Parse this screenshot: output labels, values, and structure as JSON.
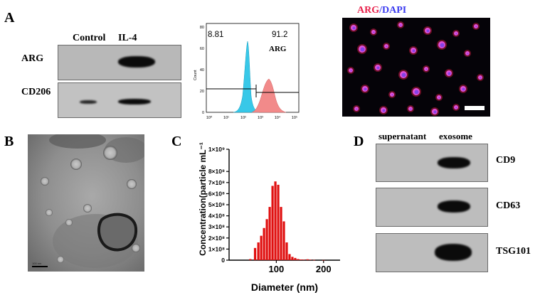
{
  "panels": {
    "a": "A",
    "b": "B",
    "c": "C",
    "d": "D"
  },
  "panel_a": {
    "lanes": [
      "Control",
      "IL-4"
    ],
    "markers": [
      "ARG",
      "CD206"
    ],
    "flow": {
      "gate_left_value": "8.81",
      "gate_right_value": "91.2",
      "marker": "ARG",
      "y_axis_label": "Count",
      "y_ticks": [
        "0",
        "20",
        "40",
        "60",
        "80"
      ],
      "x_ticks": [
        "10⁰",
        "10¹",
        "10²",
        "10³",
        "10⁴",
        "10⁵"
      ],
      "colors": {
        "control": "#38c8e8",
        "il4": "#f28a8a"
      }
    },
    "fluorescence": {
      "title_part1": "ARG",
      "title_sep": "/",
      "title_part2": "DAPI",
      "colors": {
        "arg": "#e8204a",
        "dapi": "#3a3af0"
      }
    }
  },
  "panel_b": {
    "scale_bar_text": "100 nm"
  },
  "panel_c": {
    "y_ticks": [
      "0",
      "1×10⁸",
      "2×10⁸",
      "3×10⁸",
      "4×10⁸",
      "5×10⁸",
      "6×10⁸",
      "7×10⁸",
      "8×10⁸",
      "1×10⁹"
    ],
    "chart_data": {
      "type": "bar",
      "xlabel": "Diameter (nm)",
      "ylabel": "Concentration(particle mL⁻¹",
      "x": [
        45,
        55,
        62,
        68,
        74,
        80,
        86,
        92,
        98,
        104,
        110,
        116,
        122,
        128,
        134,
        140,
        146,
        152,
        158,
        166,
        172,
        180,
        200
      ],
      "values": [
        10000000.0,
        110000000.0,
        160000000.0,
        220000000.0,
        290000000.0,
        370000000.0,
        480000000.0,
        670000000.0,
        710000000.0,
        680000000.0,
        480000000.0,
        350000000.0,
        160000000.0,
        55000000.0,
        30000000.0,
        20000000.0,
        10000000.0,
        6000000.0,
        5000000.0,
        8000000.0,
        4000000.0,
        2000000.0,
        1000000.0
      ],
      "x_ticks": [
        100,
        200
      ],
      "xlim": [
        0,
        235
      ],
      "ylim": [
        0,
        1000000000.0
      ],
      "color": "#e01010"
    }
  },
  "panel_d": {
    "lanes": [
      "supernatant",
      "exosome"
    ],
    "markers": [
      "CD9",
      "CD63",
      "TSG101"
    ]
  }
}
